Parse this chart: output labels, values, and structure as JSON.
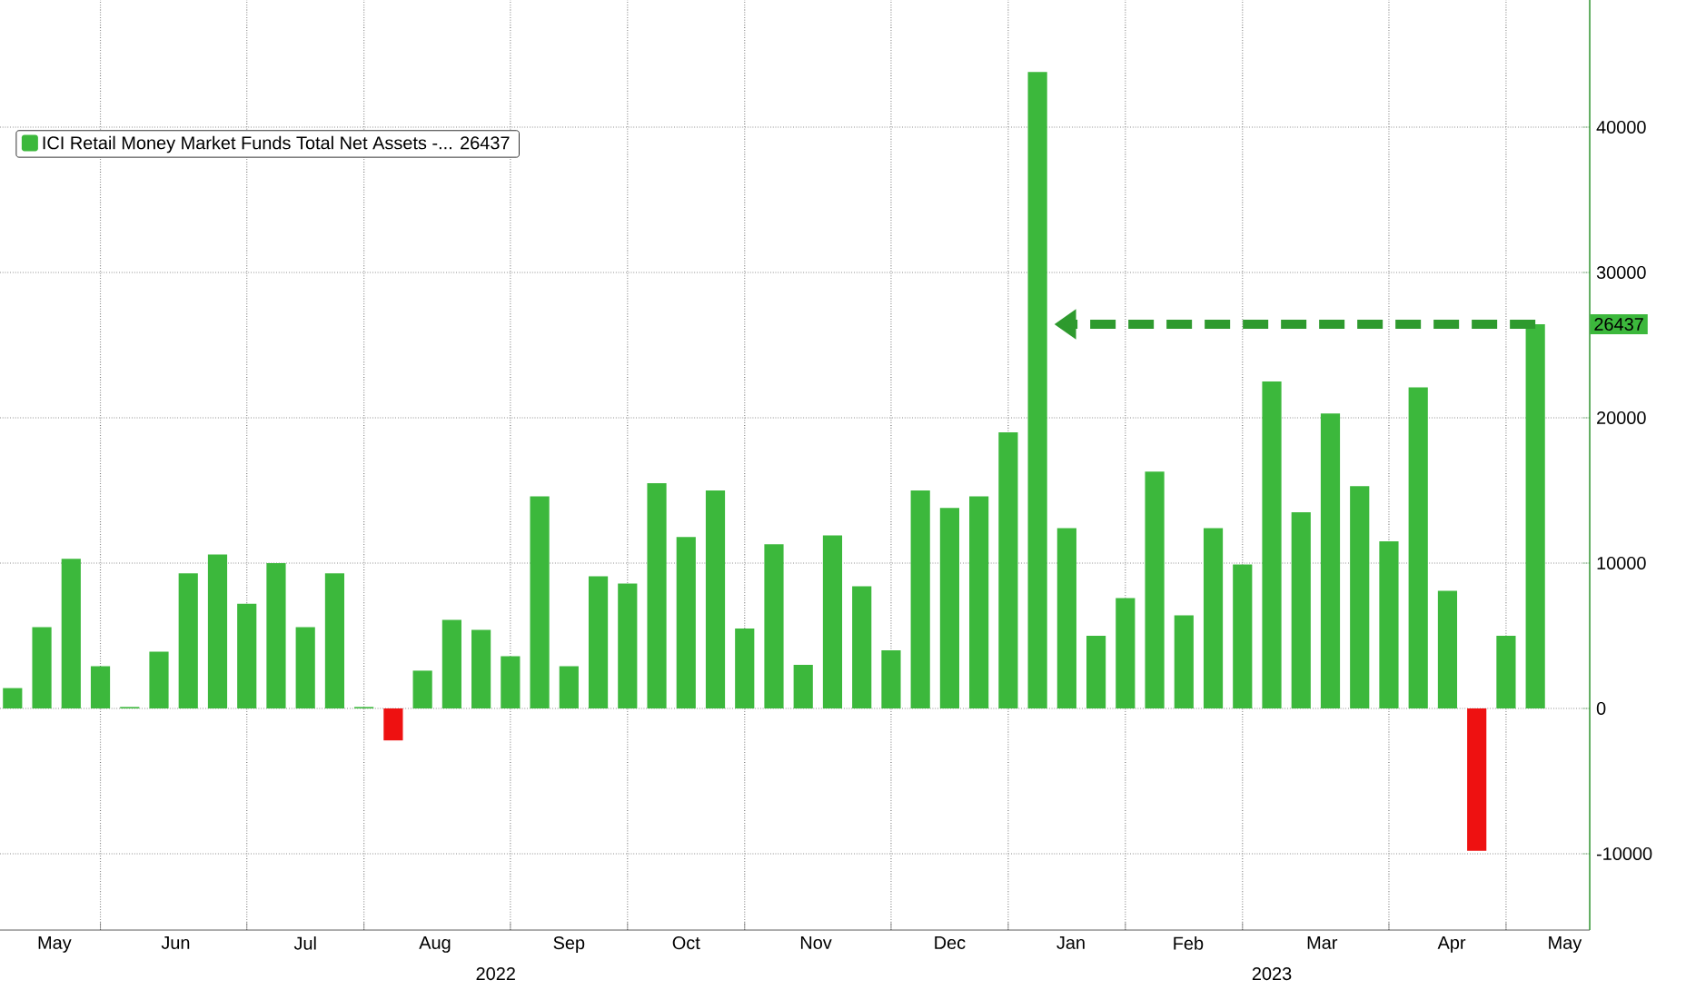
{
  "chart_data": {
    "type": "bar",
    "x": [
      "2022-05-11",
      "2022-05-18",
      "2022-05-25",
      "2022-06-01",
      "2022-06-08",
      "2022-06-15",
      "2022-06-22",
      "2022-06-29",
      "2022-07-06",
      "2022-07-13",
      "2022-07-20",
      "2022-07-27",
      "2022-08-03",
      "2022-08-10",
      "2022-08-17",
      "2022-08-24",
      "2022-08-31",
      "2022-09-07",
      "2022-09-14",
      "2022-09-21",
      "2022-09-28",
      "2022-10-05",
      "2022-10-12",
      "2022-10-19",
      "2022-10-26",
      "2022-11-02",
      "2022-11-09",
      "2022-11-16",
      "2022-11-23",
      "2022-11-30",
      "2022-12-07",
      "2022-12-14",
      "2022-12-21",
      "2022-12-28",
      "2023-01-04",
      "2023-01-11",
      "2023-01-18",
      "2023-01-25",
      "2023-02-01",
      "2023-02-08",
      "2023-02-15",
      "2023-02-22",
      "2023-03-01",
      "2023-03-08",
      "2023-03-15",
      "2023-03-22",
      "2023-03-29",
      "2023-04-05",
      "2023-04-12",
      "2023-04-19",
      "2023-04-26",
      "2023-05-03",
      "2023-05-10"
    ],
    "series": [
      {
        "name": "ICI Retail Money Market Funds Total Net Assets -... 26437",
        "color": "#3cb83c",
        "values": [
          1400,
          5600,
          10300,
          2900,
          100,
          3900,
          9300,
          10600,
          7200,
          10000,
          5600,
          9300,
          100,
          -2200,
          2600,
          6100,
          5400,
          3600,
          14600,
          2900,
          9100,
          8600,
          15500,
          11800,
          15000,
          5500,
          11300,
          3000,
          11900,
          8400,
          4000,
          15000,
          13800,
          14600,
          19000,
          43800,
          12400,
          5000,
          7600,
          16300,
          6400,
          12400,
          9900,
          22500,
          13500,
          20300,
          15300,
          11500,
          22100,
          8100,
          -9800,
          5000,
          26437
        ],
        "colors": [
          "#3cb83c",
          "#3cb83c",
          "#3cb83c",
          "#3cb83c",
          "#3cb83c",
          "#3cb83c",
          "#3cb83c",
          "#3cb83c",
          "#3cb83c",
          "#3cb83c",
          "#3cb83c",
          "#3cb83c",
          "#3cb83c",
          "#ee1111",
          "#3cb83c",
          "#3cb83c",
          "#3cb83c",
          "#3cb83c",
          "#3cb83c",
          "#3cb83c",
          "#3cb83c",
          "#3cb83c",
          "#3cb83c",
          "#3cb83c",
          "#3cb83c",
          "#3cb83c",
          "#3cb83c",
          "#3cb83c",
          "#3cb83c",
          "#3cb83c",
          "#3cb83c",
          "#3cb83c",
          "#3cb83c",
          "#3cb83c",
          "#3cb83c",
          "#3cb83c",
          "#3cb83c",
          "#3cb83c",
          "#3cb83c",
          "#3cb83c",
          "#3cb83c",
          "#3cb83c",
          "#3cb83c",
          "#3cb83c",
          "#3cb83c",
          "#3cb83c",
          "#3cb83c",
          "#3cb83c",
          "#3cb83c",
          "#3cb83c",
          "#ee1111",
          "#3cb83c",
          "#3cb83c"
        ]
      }
    ],
    "xlim": [
      "2022-05-08",
      "2023-05-23"
    ],
    "xticks": [
      {
        "value": "2022-06-01",
        "label": null
      },
      {
        "value": "2022-07-06",
        "label": null
      },
      {
        "value": "2022-08-03",
        "label": null
      },
      {
        "value": "2022-09-07",
        "label": null
      },
      {
        "value": "2022-10-05",
        "label": null
      },
      {
        "value": "2022-11-02",
        "label": null
      },
      {
        "value": "2022-12-07",
        "label": null
      },
      {
        "value": "2023-01-04",
        "label": null
      },
      {
        "value": "2023-02-01",
        "label": null
      },
      {
        "value": "2023-03-01",
        "label": null
      },
      {
        "value": "2023-04-05",
        "label": null
      },
      {
        "value": "2023-05-03",
        "label": null
      },
      {
        "value": "2022-05-21",
        "label": "May"
      },
      {
        "value": "2022-06-19",
        "label": "Jun"
      },
      {
        "value": "2022-07-20",
        "label": "Jul"
      },
      {
        "value": "2022-08-20",
        "label": "Aug"
      },
      {
        "value": "2022-09-21",
        "label": "Sep"
      },
      {
        "value": "2022-10-19",
        "label": "Oct"
      },
      {
        "value": "2022-11-19",
        "label": "Nov"
      },
      {
        "value": "2022-12-21",
        "label": "Dec"
      },
      {
        "value": "2023-01-19",
        "label": "Jan"
      },
      {
        "value": "2023-02-16",
        "label": "Feb"
      },
      {
        "value": "2023-03-20",
        "label": "Mar"
      },
      {
        "value": "2023-04-20",
        "label": "Apr"
      },
      {
        "value": "2023-05-17",
        "label": "May"
      }
    ],
    "annotations": [
      "2022",
      "2023",
      {
        "text": "26437",
        "y": 26437
      }
    ],
    "ylim": [
      -15250,
      48750
    ],
    "yticks": [
      -10000,
      0,
      10000,
      20000,
      30000,
      40000
    ],
    "grid": true,
    "legend": "top left"
  }
}
